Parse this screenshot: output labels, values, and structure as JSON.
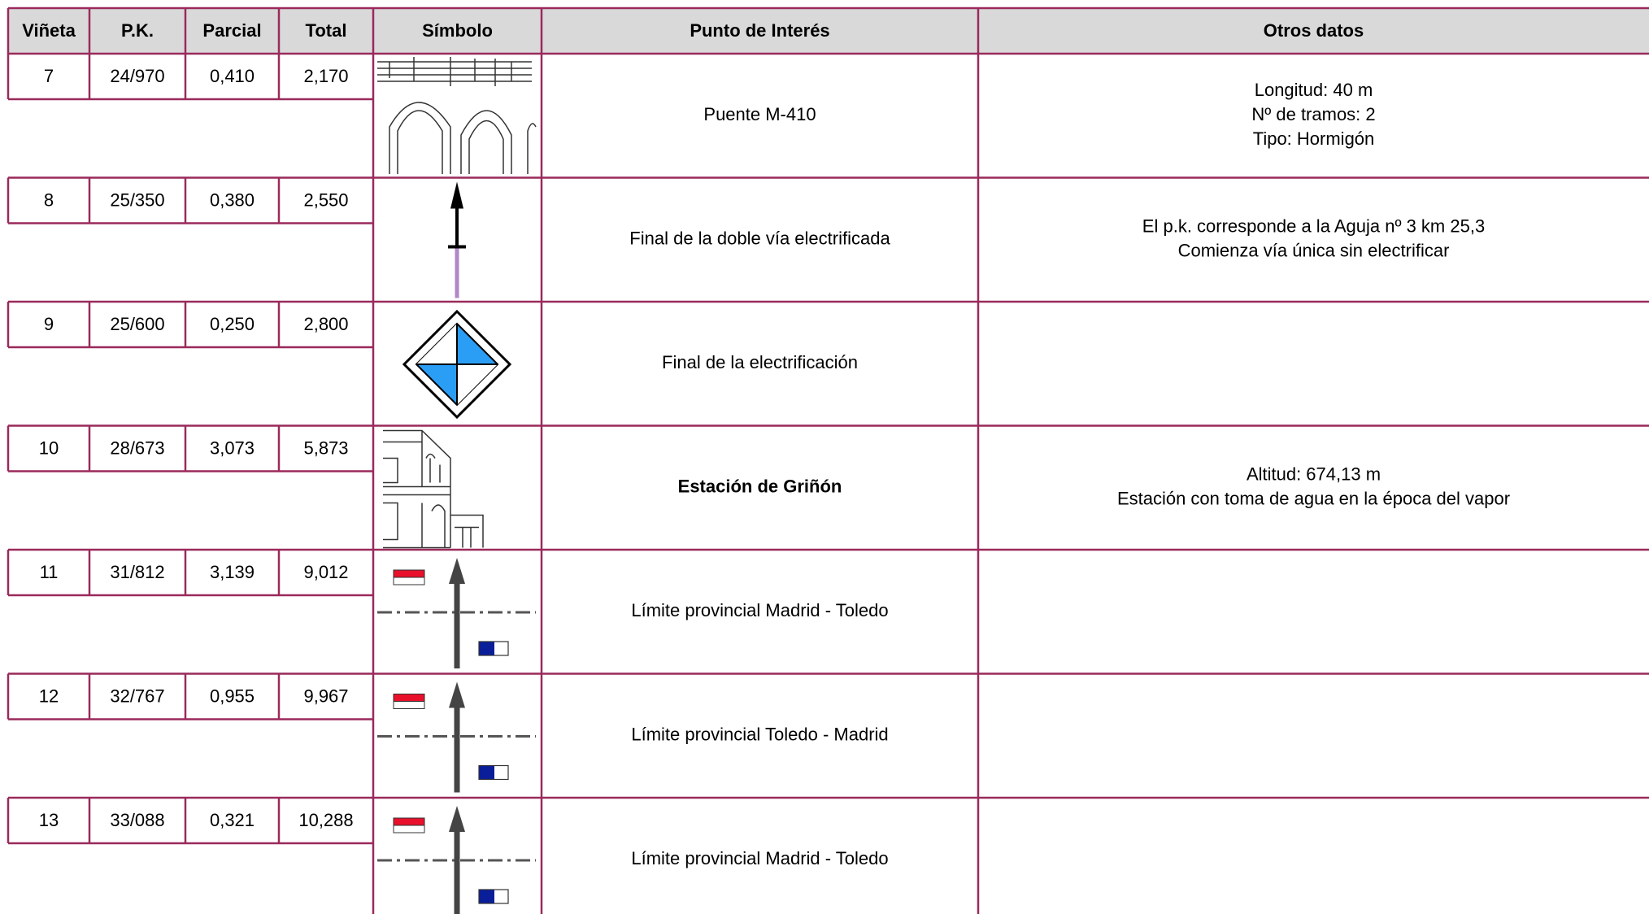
{
  "table": {
    "header": [
      "Viñeta",
      "P.K.",
      "Parcial",
      "Total",
      "Símbolo",
      "Punto de Interés",
      "Otros datos"
    ],
    "rows": [
      {
        "vineta": "7",
        "pk": "24/970",
        "parcial": "0,410",
        "total": "2,170",
        "punto": "Puente M-410",
        "otros": [
          "Longitud: 40 m",
          "Nº de tramos: 2",
          "Tipo: Hormigón"
        ]
      },
      {
        "vineta": "8",
        "pk": "25/350",
        "parcial": "0,380",
        "total": "2,550",
        "punto": "Final de la doble vía electrificada",
        "otros": [
          "El p.k. corresponde a la Aguja nº 3 km 25,3",
          "Comienza vía única sin electrificar"
        ]
      },
      {
        "vineta": "9",
        "pk": "25/600",
        "parcial": "0,250",
        "total": "2,800",
        "punto": "Final de la electrificación",
        "otros": []
      },
      {
        "vineta": "10",
        "pk": "28/673",
        "parcial": "3,073",
        "total": "5,873",
        "punto": "Estación de Griñón",
        "otros": [
          "Altitud: 674,13 m",
          "Estación con toma de agua en la época del vapor"
        ]
      },
      {
        "vineta": "11",
        "pk": "31/812",
        "parcial": "3,139",
        "total": "9,012",
        "punto": "Límite provincial Madrid - Toledo",
        "otros": []
      },
      {
        "vineta": "12",
        "pk": "32/767",
        "parcial": "0,955",
        "total": "9,967",
        "punto": "Límite provincial Toledo - Madrid",
        "otros": []
      },
      {
        "vineta": "13",
        "pk": "33/088",
        "parcial": "0,321",
        "total": "10,288",
        "punto": "Límite provincial Madrid - Toledo",
        "otros": []
      }
    ]
  }
}
